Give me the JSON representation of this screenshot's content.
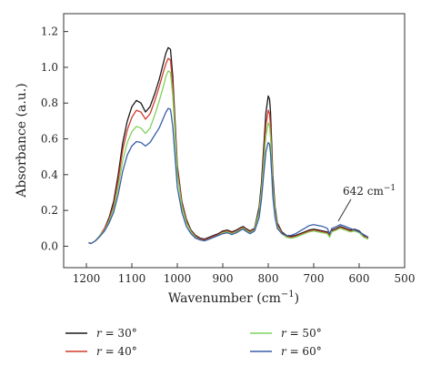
{
  "chart_data": {
    "type": "line",
    "title": "",
    "xlabel": "Wavenumber (cm",
    "xlabel_sup": "−1",
    "xlabel_close": ")",
    "ylabel": "Absorbance (a.u.)",
    "xlim": [
      1250,
      500
    ],
    "ylim": [
      -0.12,
      1.3
    ],
    "x_reversed": true,
    "xticks": [
      1200,
      1100,
      1000,
      900,
      800,
      700,
      600,
      500
    ],
    "yticks": [
      0.0,
      0.2,
      0.4,
      0.6,
      0.8,
      1.0,
      1.2
    ],
    "ytick_labels": [
      "0.0",
      "0.2",
      "0.4",
      "0.6",
      "0.8",
      "1.0",
      "1.2"
    ],
    "grid": false,
    "legend_position": "bottom",
    "annotation": {
      "text": "642 cm",
      "sup": "−1",
      "x": 642,
      "y": 0.13
    },
    "series": [
      {
        "name": "r = 30°",
        "var": "r",
        "value": "30°",
        "color": "#1a1a1a",
        "x": [
          1195,
          1190,
          1180,
          1170,
          1160,
          1150,
          1140,
          1130,
          1120,
          1110,
          1100,
          1090,
          1080,
          1070,
          1060,
          1050,
          1040,
          1030,
          1025,
          1020,
          1015,
          1010,
          1005,
          1000,
          990,
          980,
          970,
          960,
          950,
          940,
          930,
          920,
          910,
          900,
          890,
          880,
          870,
          860,
          855,
          850,
          840,
          830,
          820,
          815,
          810,
          805,
          800,
          797,
          795,
          792,
          790,
          785,
          780,
          770,
          760,
          750,
          740,
          730,
          720,
          710,
          700,
          690,
          680,
          670,
          665,
          660,
          650,
          642,
          630,
          620,
          610,
          600,
          590,
          580
        ],
        "values": [
          0.02,
          0.015,
          0.03,
          0.06,
          0.1,
          0.16,
          0.25,
          0.4,
          0.58,
          0.7,
          0.78,
          0.815,
          0.8,
          0.75,
          0.78,
          0.85,
          0.93,
          1.03,
          1.08,
          1.11,
          1.1,
          0.95,
          0.7,
          0.45,
          0.25,
          0.15,
          0.09,
          0.06,
          0.045,
          0.04,
          0.05,
          0.06,
          0.07,
          0.085,
          0.09,
          0.08,
          0.09,
          0.105,
          0.11,
          0.1,
          0.085,
          0.1,
          0.22,
          0.35,
          0.55,
          0.75,
          0.84,
          0.82,
          0.75,
          0.55,
          0.4,
          0.22,
          0.13,
          0.08,
          0.06,
          0.055,
          0.06,
          0.07,
          0.08,
          0.09,
          0.095,
          0.09,
          0.085,
          0.08,
          0.06,
          0.09,
          0.1,
          0.11,
          0.1,
          0.09,
          0.095,
          0.085,
          0.06,
          0.05
        ]
      },
      {
        "name": "r = 40°",
        "var": "r",
        "value": "40°",
        "color": "#d23a2c",
        "x": [
          1195,
          1190,
          1180,
          1170,
          1160,
          1150,
          1140,
          1130,
          1120,
          1110,
          1100,
          1090,
          1080,
          1070,
          1060,
          1050,
          1040,
          1030,
          1025,
          1020,
          1015,
          1010,
          1005,
          1000,
          990,
          980,
          970,
          960,
          950,
          940,
          930,
          920,
          910,
          900,
          890,
          880,
          870,
          860,
          855,
          850,
          840,
          830,
          820,
          815,
          810,
          805,
          800,
          797,
          795,
          792,
          790,
          785,
          780,
          770,
          760,
          750,
          740,
          730,
          720,
          710,
          700,
          690,
          680,
          670,
          665,
          660,
          650,
          642,
          630,
          620,
          610,
          600,
          590,
          580
        ],
        "values": [
          0.02,
          0.015,
          0.03,
          0.06,
          0.1,
          0.15,
          0.23,
          0.37,
          0.54,
          0.65,
          0.72,
          0.76,
          0.75,
          0.71,
          0.74,
          0.81,
          0.89,
          0.98,
          1.02,
          1.05,
          1.04,
          0.9,
          0.66,
          0.43,
          0.24,
          0.14,
          0.085,
          0.055,
          0.04,
          0.035,
          0.045,
          0.055,
          0.065,
          0.08,
          0.085,
          0.075,
          0.085,
          0.1,
          0.105,
          0.095,
          0.08,
          0.095,
          0.2,
          0.32,
          0.5,
          0.68,
          0.76,
          0.74,
          0.67,
          0.5,
          0.36,
          0.2,
          0.12,
          0.075,
          0.055,
          0.05,
          0.055,
          0.065,
          0.075,
          0.085,
          0.09,
          0.085,
          0.08,
          0.075,
          0.055,
          0.085,
          0.095,
          0.105,
          0.095,
          0.085,
          0.09,
          0.08,
          0.055,
          0.045
        ]
      },
      {
        "name": "r = 50°",
        "var": "r",
        "value": "50°",
        "color": "#7fd35c",
        "x": [
          1195,
          1190,
          1180,
          1170,
          1160,
          1150,
          1140,
          1130,
          1120,
          1110,
          1100,
          1090,
          1080,
          1070,
          1060,
          1050,
          1040,
          1030,
          1025,
          1020,
          1015,
          1010,
          1005,
          1000,
          990,
          980,
          970,
          960,
          950,
          940,
          930,
          920,
          910,
          900,
          890,
          880,
          870,
          860,
          855,
          850,
          840,
          830,
          820,
          815,
          810,
          805,
          800,
          797,
          795,
          792,
          790,
          785,
          780,
          770,
          760,
          750,
          740,
          730,
          720,
          710,
          700,
          690,
          680,
          670,
          665,
          660,
          650,
          642,
          630,
          620,
          610,
          600,
          590,
          580
        ],
        "values": [
          0.02,
          0.015,
          0.03,
          0.06,
          0.09,
          0.14,
          0.21,
          0.33,
          0.48,
          0.58,
          0.64,
          0.67,
          0.66,
          0.63,
          0.66,
          0.73,
          0.81,
          0.9,
          0.95,
          0.98,
          0.97,
          0.84,
          0.62,
          0.4,
          0.22,
          0.13,
          0.08,
          0.05,
          0.035,
          0.03,
          0.04,
          0.05,
          0.06,
          0.075,
          0.08,
          0.07,
          0.08,
          0.095,
          0.1,
          0.09,
          0.075,
          0.09,
          0.19,
          0.3,
          0.46,
          0.62,
          0.69,
          0.67,
          0.61,
          0.46,
          0.33,
          0.19,
          0.11,
          0.07,
          0.05,
          0.045,
          0.05,
          0.06,
          0.07,
          0.08,
          0.085,
          0.08,
          0.075,
          0.07,
          0.05,
          0.08,
          0.09,
          0.1,
          0.09,
          0.08,
          0.085,
          0.075,
          0.05,
          0.04
        ]
      },
      {
        "name": "r = 60°",
        "var": "r",
        "value": "60°",
        "color": "#3a5ea8",
        "x": [
          1195,
          1190,
          1180,
          1170,
          1160,
          1150,
          1140,
          1130,
          1120,
          1110,
          1100,
          1090,
          1080,
          1070,
          1060,
          1050,
          1040,
          1030,
          1025,
          1020,
          1015,
          1010,
          1005,
          1000,
          990,
          980,
          970,
          960,
          950,
          940,
          930,
          920,
          910,
          900,
          890,
          880,
          870,
          860,
          855,
          850,
          840,
          830,
          820,
          815,
          810,
          805,
          800,
          797,
          795,
          792,
          790,
          785,
          780,
          770,
          760,
          750,
          740,
          730,
          720,
          710,
          700,
          690,
          680,
          670,
          665,
          660,
          650,
          642,
          630,
          620,
          610,
          600,
          590,
          580
        ],
        "values": [
          0.02,
          0.015,
          0.03,
          0.055,
          0.085,
          0.13,
          0.19,
          0.29,
          0.42,
          0.51,
          0.56,
          0.585,
          0.58,
          0.56,
          0.58,
          0.62,
          0.66,
          0.72,
          0.75,
          0.77,
          0.765,
          0.67,
          0.5,
          0.33,
          0.19,
          0.11,
          0.07,
          0.045,
          0.035,
          0.03,
          0.04,
          0.05,
          0.06,
          0.07,
          0.075,
          0.065,
          0.075,
          0.09,
          0.095,
          0.085,
          0.07,
          0.085,
          0.16,
          0.26,
          0.4,
          0.53,
          0.58,
          0.57,
          0.52,
          0.39,
          0.28,
          0.16,
          0.1,
          0.07,
          0.06,
          0.06,
          0.07,
          0.085,
          0.1,
          0.115,
          0.12,
          0.115,
          0.11,
          0.1,
          0.07,
          0.1,
          0.11,
          0.12,
          0.11,
          0.1,
          0.09,
          0.08,
          0.065,
          0.05
        ]
      }
    ]
  }
}
